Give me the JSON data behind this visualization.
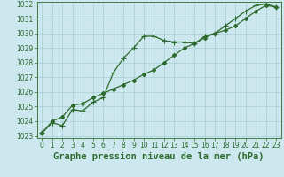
{
  "title": "Graphe pression niveau de la mer (hPa)",
  "hours": [
    0,
    1,
    2,
    3,
    4,
    5,
    6,
    7,
    8,
    9,
    10,
    11,
    12,
    13,
    14,
    15,
    16,
    17,
    18,
    19,
    20,
    21,
    22,
    23
  ],
  "line1_y": [
    1023.2,
    1023.9,
    1023.7,
    1024.8,
    1024.7,
    1025.3,
    1025.6,
    1027.3,
    1028.3,
    1029.0,
    1029.8,
    1029.8,
    1029.5,
    1029.4,
    1029.4,
    1029.3,
    1029.8,
    1030.0,
    1030.5,
    1031.0,
    1031.5,
    1031.9,
    1032.0,
    1031.8
  ],
  "line2_y": [
    1023.2,
    1024.0,
    1024.3,
    1025.1,
    1025.2,
    1025.6,
    1025.9,
    1026.2,
    1026.5,
    1026.8,
    1027.2,
    1027.5,
    1028.0,
    1028.5,
    1029.0,
    1029.3,
    1029.7,
    1030.0,
    1030.2,
    1030.5,
    1031.0,
    1031.5,
    1031.9,
    1031.8
  ],
  "line_color": "#2d6a2d",
  "bg_color": "#cce8ee",
  "grid_color": "#a8cdd4",
  "ylim_min": 1023,
  "ylim_max": 1032,
  "yticks": [
    1023,
    1024,
    1025,
    1026,
    1027,
    1028,
    1029,
    1030,
    1031,
    1032
  ],
  "marker1": "+",
  "marker2": "D",
  "title_fontsize": 7.5,
  "tick_fontsize": 5.5,
  "linewidth": 0.9,
  "markersize1": 4,
  "markersize2": 2
}
